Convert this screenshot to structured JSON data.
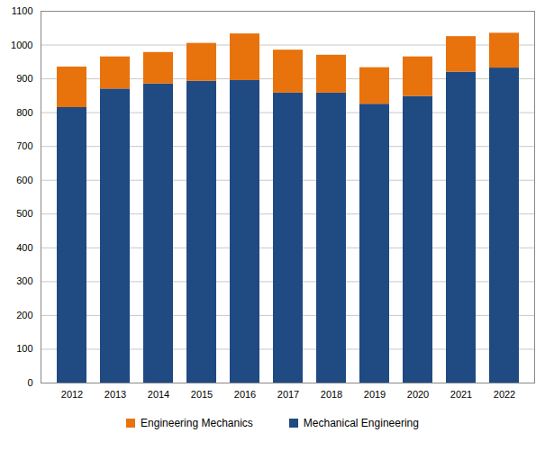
{
  "chart_data": {
    "type": "bar",
    "stacked": true,
    "grid": true,
    "categories": [
      "2012",
      "2013",
      "2014",
      "2015",
      "2016",
      "2017",
      "2018",
      "2019",
      "2020",
      "2021",
      "2022"
    ],
    "series": [
      {
        "name": "Mechanical Engineering",
        "color": "#1f4a82",
        "values": [
          815,
          870,
          885,
          893,
          895,
          858,
          858,
          825,
          848,
          920,
          932
        ]
      },
      {
        "name": "Engineering Mechanics",
        "color": "#e8720c",
        "values": [
          120,
          95,
          93,
          112,
          138,
          127,
          112,
          108,
          117,
          105,
          103
        ]
      }
    ],
    "ylim": [
      0,
      1100
    ],
    "yticks": [
      0,
      100,
      200,
      300,
      400,
      500,
      600,
      700,
      800,
      900,
      1000,
      1100
    ],
    "legend": "bottom"
  }
}
